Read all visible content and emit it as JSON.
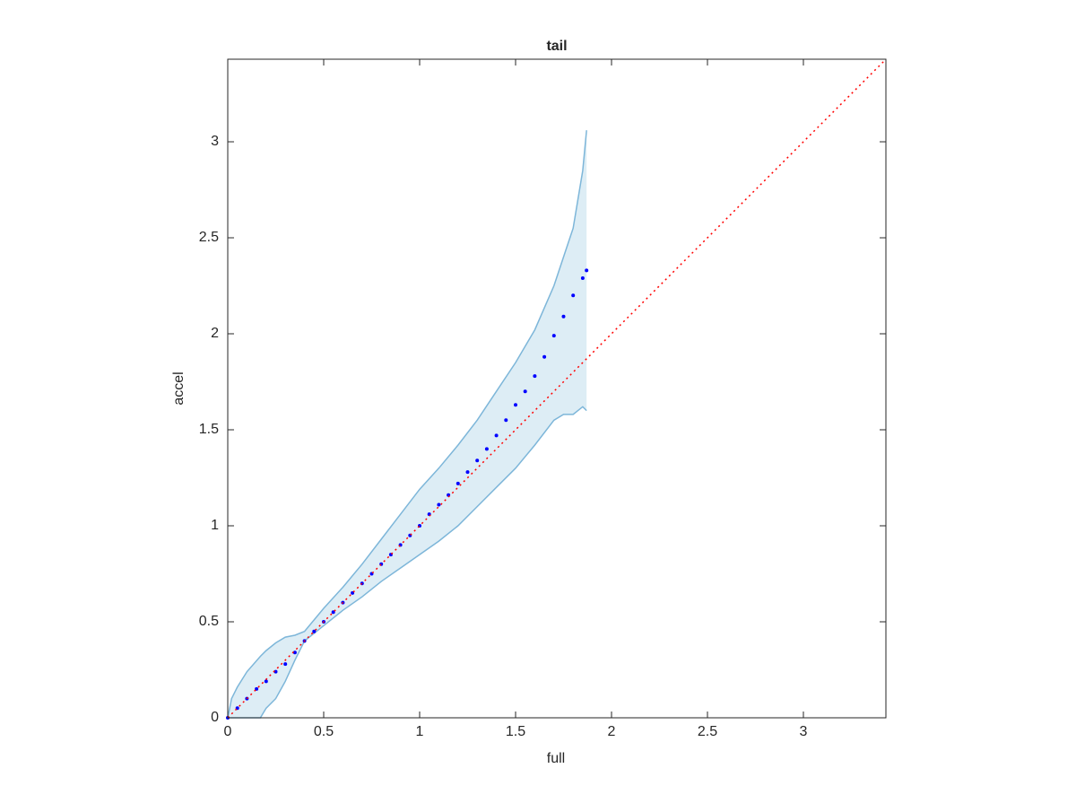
{
  "chart_data": {
    "type": "scatter",
    "title": "tail",
    "x_label": "full",
    "y_label": "accel",
    "xlim": [
      0,
      3.43
    ],
    "ylim": [
      0,
      3.43
    ],
    "xticks": [
      0,
      0.5,
      1,
      1.5,
      2,
      2.5,
      3
    ],
    "yticks": [
      0,
      0.5,
      1,
      1.5,
      2,
      2.5,
      3
    ],
    "series": [
      {
        "type": "band",
        "color": "#9ecae1",
        "edge_color": "#7db6d9",
        "x": [
          0,
          0.02,
          0.05,
          0.1,
          0.17,
          0.2,
          0.25,
          0.3,
          0.35,
          0.4,
          0.5,
          0.6,
          0.7,
          0.8,
          0.9,
          1.0,
          1.1,
          1.2,
          1.3,
          1.4,
          1.5,
          1.6,
          1.7,
          1.75,
          1.8,
          1.85,
          1.87
        ],
        "upper": [
          0,
          0.1,
          0.16,
          0.24,
          0.32,
          0.35,
          0.39,
          0.42,
          0.43,
          0.45,
          0.57,
          0.68,
          0.8,
          0.93,
          1.06,
          1.19,
          1.3,
          1.42,
          1.55,
          1.7,
          1.85,
          2.02,
          2.25,
          2.4,
          2.55,
          2.85,
          3.06
        ],
        "lower": [
          0,
          0,
          0,
          0,
          0,
          0.05,
          0.1,
          0.19,
          0.3,
          0.4,
          0.48,
          0.56,
          0.63,
          0.71,
          0.78,
          0.85,
          0.92,
          1.0,
          1.1,
          1.2,
          1.3,
          1.42,
          1.55,
          1.58,
          1.58,
          1.62,
          1.6
        ]
      },
      {
        "type": "scatter",
        "color": "#0000ff",
        "x": [
          0,
          0.05,
          0.1,
          0.15,
          0.2,
          0.25,
          0.3,
          0.35,
          0.4,
          0.45,
          0.5,
          0.55,
          0.6,
          0.65,
          0.7,
          0.75,
          0.8,
          0.85,
          0.9,
          0.95,
          1.0,
          1.05,
          1.1,
          1.15,
          1.2,
          1.25,
          1.3,
          1.35,
          1.4,
          1.45,
          1.5,
          1.55,
          1.6,
          1.65,
          1.7,
          1.75,
          1.8,
          1.85,
          1.87
        ],
        "values": [
          0,
          0.05,
          0.1,
          0.15,
          0.19,
          0.24,
          0.28,
          0.34,
          0.4,
          0.45,
          0.5,
          0.55,
          0.6,
          0.65,
          0.7,
          0.75,
          0.8,
          0.85,
          0.9,
          0.95,
          1.0,
          1.06,
          1.11,
          1.16,
          1.22,
          1.28,
          1.34,
          1.4,
          1.47,
          1.55,
          1.63,
          1.7,
          1.78,
          1.88,
          1.99,
          2.09,
          2.2,
          2.29,
          2.33
        ]
      },
      {
        "type": "line",
        "color": "#ff0000",
        "dash": "2 4",
        "x": [
          0,
          3.43
        ],
        "values": [
          0,
          3.43
        ]
      }
    ]
  }
}
